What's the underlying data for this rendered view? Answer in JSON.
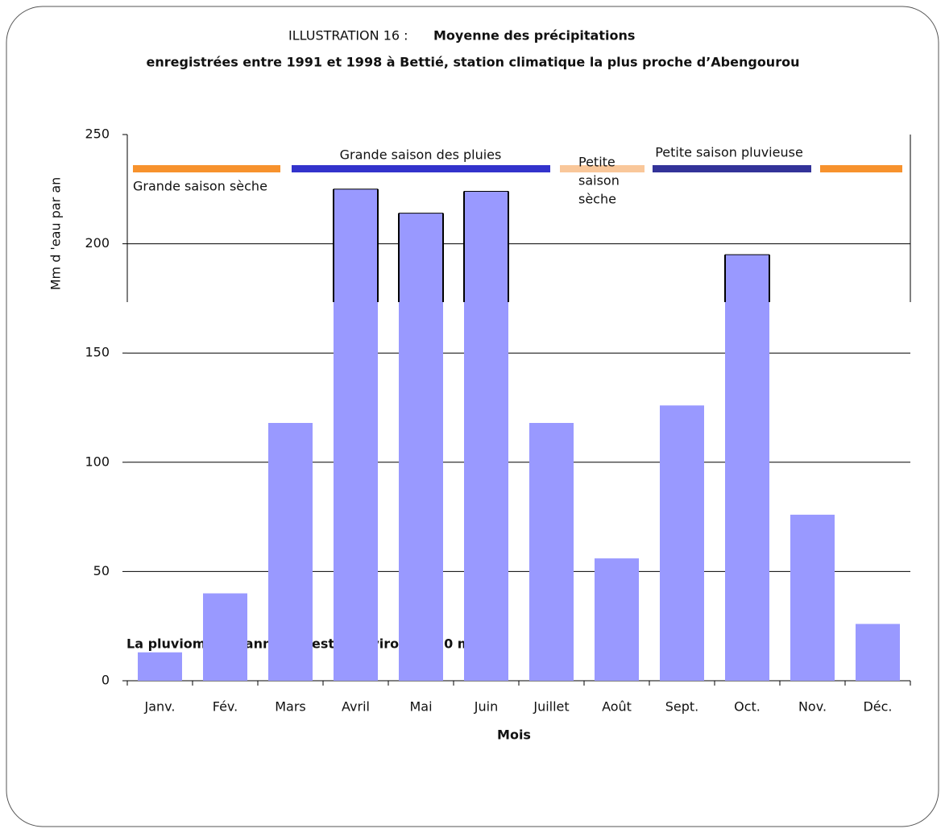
{
  "chart_data": {
    "type": "bar",
    "title_prefix": "ILLUSTRATION 16 :",
    "title": "Moyenne des précipitations",
    "subtitle": "enregistrées entre 1991 et 1998 à Bettié, station climatique la plus proche d’Abengourou",
    "categories": [
      "Janv.",
      "Fév.",
      "Mars",
      "Avril",
      "Mai",
      "Juin",
      "Juillet",
      "Août",
      "Sept.",
      "Oct.",
      "Nov.",
      "Déc."
    ],
    "values": [
      13,
      40,
      118,
      225,
      214,
      224,
      118,
      56,
      126,
      195,
      76,
      26
    ],
    "color": "#9999ff",
    "ylim": [
      0,
      250
    ],
    "yticks": [
      0,
      50,
      100,
      150,
      200,
      250
    ],
    "grid": true,
    "ylabel": "Mm d 'eau par an",
    "xlabel": "Mois",
    "seasons": [
      {
        "label": "Grande saison sèche",
        "color": "#f7922d"
      },
      {
        "label": "Grande saison des pluies",
        "color": "#3333cc"
      },
      {
        "label": [
          "Petite",
          "saison",
          "sèche"
        ],
        "color": "#f9c79a"
      },
      {
        "label": "Petite saison pluvieuse",
        "color": "#333399"
      },
      {
        "color": "#f7922d"
      }
    ],
    "note": "La pluviométrie annuelle est d’environ 1 320 mm."
  }
}
